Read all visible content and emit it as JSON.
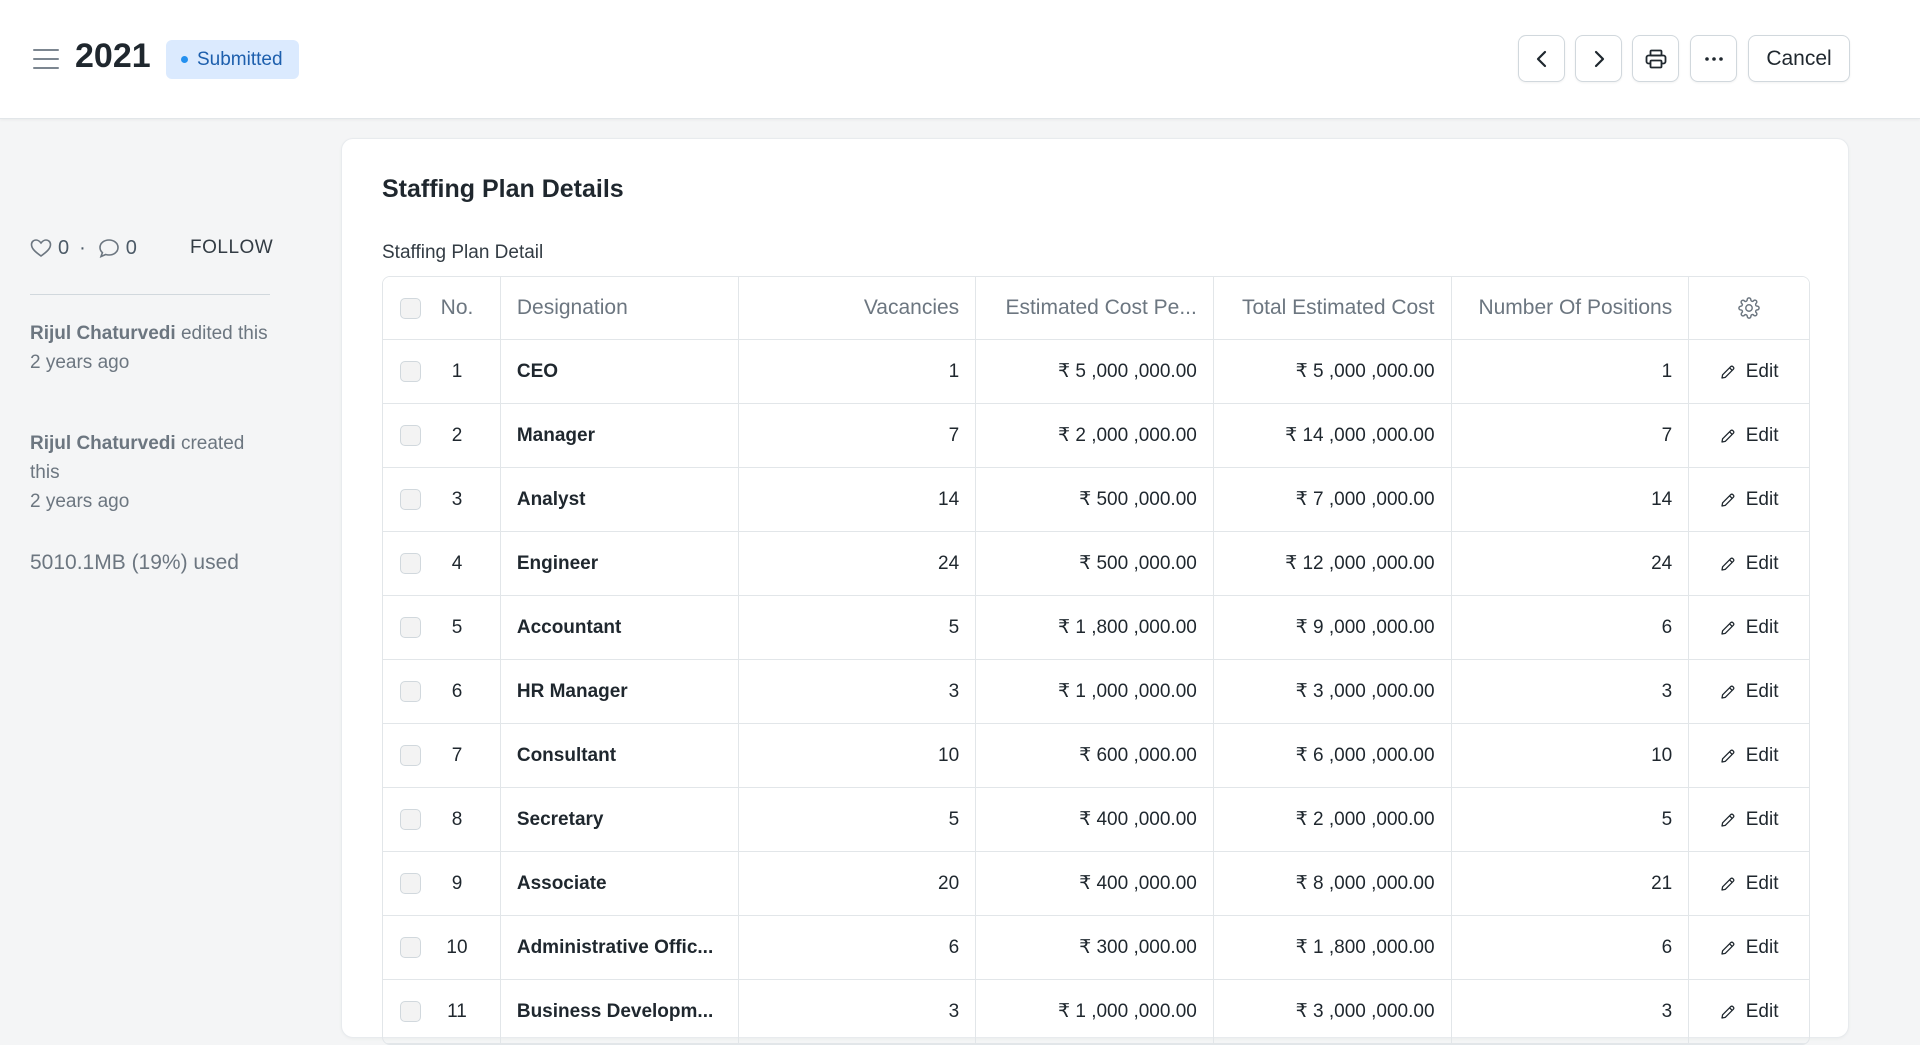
{
  "header": {
    "title": "2021",
    "status": "Submitted",
    "cancel_label": "Cancel"
  },
  "sidebar": {
    "likes": "0",
    "comments": "0",
    "follow_label": "FOLLOW",
    "activity": [
      {
        "user": "Rijul Chaturvedi",
        "action": "edited this",
        "time": "2 years ago"
      },
      {
        "user": "Rijul Chaturvedi",
        "action": "created this",
        "time": "2 years ago"
      }
    ],
    "usage": "5010.1MB (19%) used"
  },
  "section": {
    "title": "Staffing Plan Details",
    "grid_label": "Staffing Plan Detail"
  },
  "table": {
    "columns": {
      "no": "No.",
      "designation": "Designation",
      "vacancies": "Vacancies",
      "estimated_cost": "Estimated Cost Pe...",
      "total_cost": "Total Estimated Cost",
      "positions": "Number Of Positions"
    },
    "edit_label": "Edit",
    "rows": [
      {
        "no": "1",
        "designation": "CEO",
        "vacancies": "1",
        "estimated_cost": "₹ 5 ,000 ,000.00",
        "total_cost": "₹ 5 ,000 ,000.00",
        "positions": "1"
      },
      {
        "no": "2",
        "designation": "Manager",
        "vacancies": "7",
        "estimated_cost": "₹ 2 ,000 ,000.00",
        "total_cost": "₹ 14 ,000 ,000.00",
        "positions": "7"
      },
      {
        "no": "3",
        "designation": "Analyst",
        "vacancies": "14",
        "estimated_cost": "₹ 500 ,000.00",
        "total_cost": "₹ 7 ,000 ,000.00",
        "positions": "14"
      },
      {
        "no": "4",
        "designation": "Engineer",
        "vacancies": "24",
        "estimated_cost": "₹ 500 ,000.00",
        "total_cost": "₹ 12 ,000 ,000.00",
        "positions": "24"
      },
      {
        "no": "5",
        "designation": "Accountant",
        "vacancies": "5",
        "estimated_cost": "₹ 1 ,800 ,000.00",
        "total_cost": "₹ 9 ,000 ,000.00",
        "positions": "6"
      },
      {
        "no": "6",
        "designation": "HR Manager",
        "vacancies": "3",
        "estimated_cost": "₹ 1 ,000 ,000.00",
        "total_cost": "₹ 3 ,000 ,000.00",
        "positions": "3"
      },
      {
        "no": "7",
        "designation": "Consultant",
        "vacancies": "10",
        "estimated_cost": "₹ 600 ,000.00",
        "total_cost": "₹ 6 ,000 ,000.00",
        "positions": "10"
      },
      {
        "no": "8",
        "designation": "Secretary",
        "vacancies": "5",
        "estimated_cost": "₹ 400 ,000.00",
        "total_cost": "₹ 2 ,000 ,000.00",
        "positions": "5"
      },
      {
        "no": "9",
        "designation": "Associate",
        "vacancies": "20",
        "estimated_cost": "₹ 400 ,000.00",
        "total_cost": "₹ 8 ,000 ,000.00",
        "positions": "21"
      },
      {
        "no": "10",
        "designation": "Administrative Offic...",
        "vacancies": "6",
        "estimated_cost": "₹ 300 ,000.00",
        "total_cost": "₹ 1 ,800 ,000.00",
        "positions": "6"
      },
      {
        "no": "11",
        "designation": "Business Developm...",
        "vacancies": "3",
        "estimated_cost": "₹ 1 ,000 ,000.00",
        "total_cost": "₹ 3 ,000 ,000.00",
        "positions": "3"
      }
    ]
  },
  "colors": {
    "status_bg": "#dbeafe",
    "status_text": "#1d5fad",
    "status_dot": "#2490ef",
    "page_bg": "#f4f5f6",
    "border": "#e2e6e9"
  },
  "icons": [
    "menu-icon",
    "chevron-left-icon",
    "chevron-right-icon",
    "printer-icon",
    "more-icon",
    "heart-icon",
    "comment-icon",
    "gear-icon",
    "pencil-icon"
  ]
}
